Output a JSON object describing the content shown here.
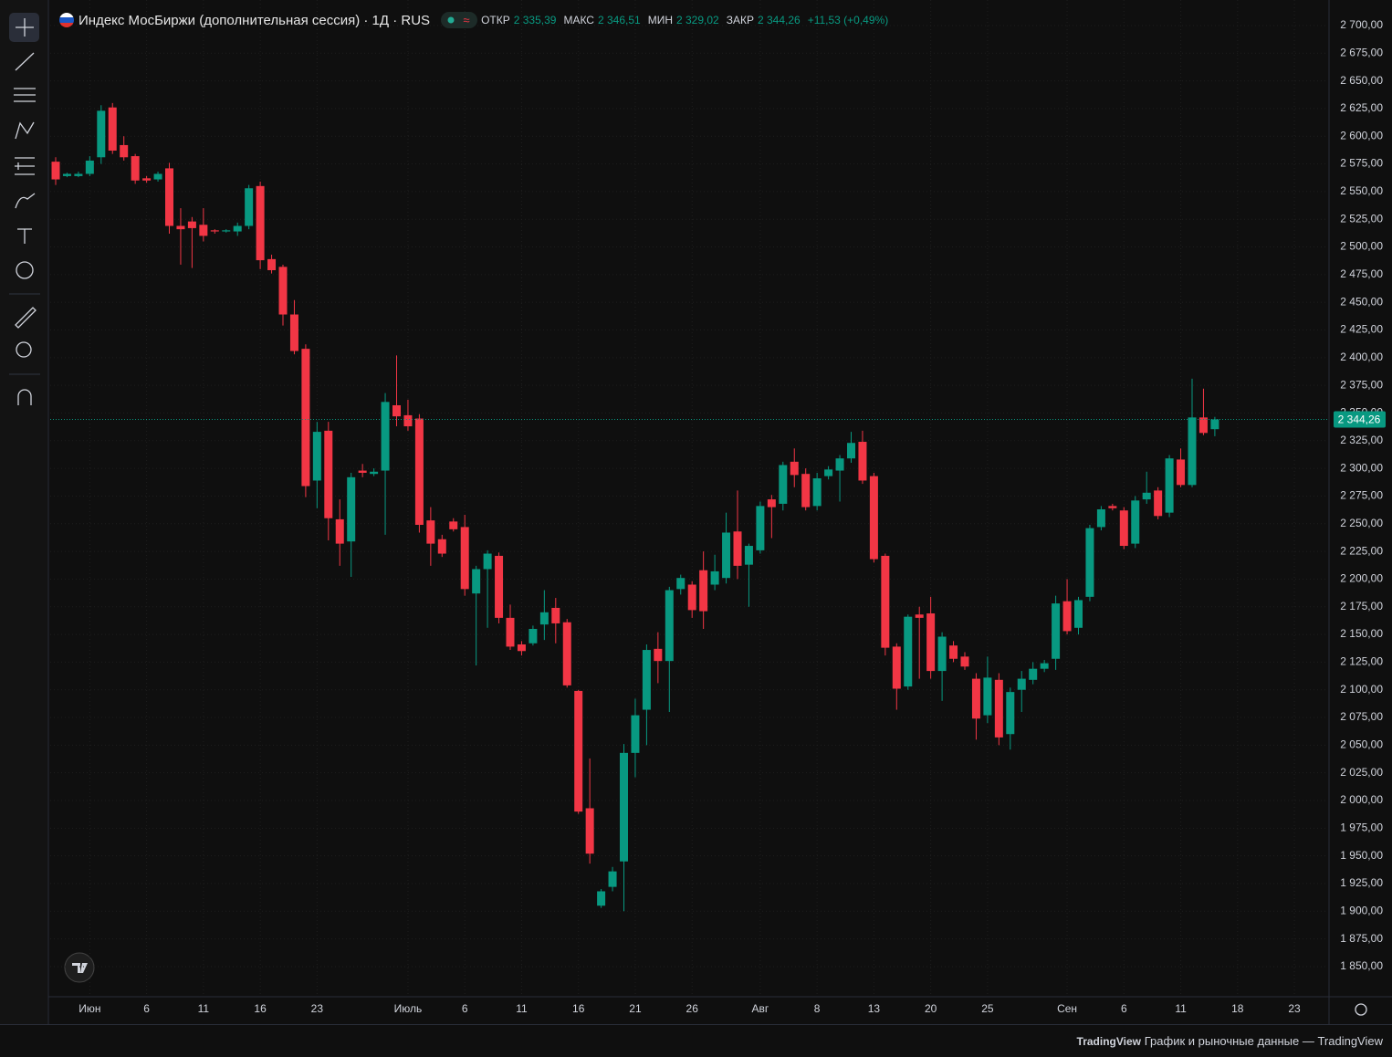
{
  "chart_data": {
    "type": "candlestick",
    "title": "Индекс МосБиржи (дополнительная сессия) · 1Д · RUS",
    "ohlc_legend": {
      "open_label": "ОТКР",
      "open": "2 335,39",
      "high_label": "МАКС",
      "high": "2 346,51",
      "low_label": "МИН",
      "low": "2 329,02",
      "close_label": "ЗАКР",
      "close": "2 344,26",
      "change": "+11,53 (+0,49%)"
    },
    "categories": [
      null,
      null,
      null,
      "Июн",
      null,
      null,
      null,
      null,
      "6",
      null,
      null,
      null,
      null,
      "11",
      null,
      null,
      null,
      null,
      "16",
      null,
      null,
      null,
      null,
      "23",
      null,
      null,
      null,
      null,
      null,
      null,
      null,
      "Июль",
      null,
      null,
      null,
      null,
      "6",
      null,
      null,
      null,
      null,
      "11",
      null,
      null,
      null,
      null,
      "16",
      null,
      null,
      null,
      null,
      "21",
      null,
      null,
      null,
      null,
      "26",
      null,
      null,
      null,
      null,
      null,
      "Авг",
      null,
      null,
      null,
      null,
      "8",
      null,
      null,
      null,
      null,
      "13",
      null,
      null,
      null,
      null,
      "20",
      null,
      null,
      null,
      null,
      "25",
      null,
      null,
      null,
      null,
      null,
      null,
      "Сен",
      null,
      null,
      null,
      null,
      "6",
      null,
      null,
      null,
      null,
      "11",
      null,
      null,
      null,
      null,
      "18",
      null,
      null,
      null,
      null,
      "23"
    ],
    "open": [
      2577,
      2564,
      2564,
      2566,
      2581,
      2626,
      2592,
      2582,
      2562,
      2561,
      2571,
      2519,
      2523,
      2520,
      2515,
      2514,
      2514,
      2519,
      2555,
      2489,
      2482,
      2439,
      2408,
      2289,
      2334,
      2254,
      2234,
      2298,
      2295,
      2298,
      2357,
      2348,
      2345,
      2253,
      2236,
      2252,
      2247,
      2187,
      2209,
      2221,
      2165,
      2141,
      2142,
      2159,
      2174,
      2161,
      2099,
      1993,
      1905,
      1922,
      1945,
      2043,
      2082,
      2137,
      2126,
      2191,
      2195,
      2208,
      2195,
      2201,
      2243,
      2213,
      2226,
      2272,
      2268,
      2306,
      2295,
      2266,
      2293,
      2298,
      2309,
      2324,
      2293,
      2221,
      2139,
      2103,
      2168,
      2169,
      2117,
      2140,
      2130,
      2110,
      2077,
      2109,
      2060,
      2100,
      2109,
      2119,
      2128,
      2180,
      2156,
      2184,
      2247,
      2266,
      2262,
      2232,
      2272,
      2280,
      2260,
      2308,
      2285,
      2346,
      2335.39,
      null,
      null,
      null,
      null,
      null,
      null,
      null
    ],
    "high": [
      2581,
      2567,
      2568,
      2582,
      2628,
      2630,
      2600,
      2584,
      2564,
      2568,
      2576,
      2535,
      2527,
      2535,
      2516,
      2516,
      2522,
      2556,
      2559,
      2493,
      2484,
      2452,
      2412,
      2342,
      2342,
      2272,
      2296,
      2304,
      2300,
      2368,
      2402,
      2362,
      2349,
      2265,
      2240,
      2255,
      2258,
      2212,
      2226,
      2224,
      2177,
      2144,
      2158,
      2190,
      2183,
      2164,
      2100,
      2038,
      1920,
      1940,
      2051,
      2092,
      2141,
      2152,
      2193,
      2204,
      2198,
      2225,
      2222,
      2260,
      2280,
      2232,
      2270,
      2276,
      2306,
      2318,
      2300,
      2296,
      2302,
      2312,
      2333,
      2334,
      2296,
      2223,
      2142,
      2168,
      2175,
      2184,
      2152,
      2144,
      2134,
      2115,
      2130,
      2115,
      2102,
      2117,
      2125,
      2127,
      2185,
      2200,
      2184,
      2249,
      2266,
      2268,
      2265,
      2275,
      2297,
      2283,
      2312,
      2318,
      2381,
      2372,
      2346.51,
      null,
      null,
      null,
      null,
      null,
      null,
      null
    ],
    "low": [
      2556,
      2563,
      2563,
      2564,
      2575,
      2584,
      2578,
      2557,
      2558,
      2559,
      2512,
      2484,
      2481,
      2505,
      2512,
      2513,
      2510,
      2516,
      2480,
      2476,
      2429,
      2403,
      2274,
      2264,
      2235,
      2212,
      2202,
      2292,
      2293,
      2240,
      2338,
      2334,
      2242,
      2212,
      2220,
      2243,
      2185,
      2122,
      2156,
      2160,
      2136,
      2131,
      2140,
      2145,
      2142,
      2102,
      1988,
      1943,
      1903,
      1918,
      1900,
      2021,
      2050,
      2106,
      2080,
      2186,
      2165,
      2155,
      2190,
      2196,
      2200,
      2175,
      2223,
      2237,
      2262,
      2283,
      2262,
      2262,
      2290,
      2270,
      2305,
      2286,
      2215,
      2131,
      2082,
      2100,
      2110,
      2110,
      2090,
      2125,
      2118,
      2055,
      2070,
      2050,
      2046,
      2080,
      2105,
      2116,
      2118,
      2150,
      2150,
      2180,
      2244,
      2262,
      2227,
      2228,
      2268,
      2254,
      2256,
      2283,
      2283,
      2330,
      2329.02,
      null,
      null,
      null,
      null,
      null,
      null,
      null
    ],
    "close": [
      2561,
      2566,
      2566,
      2578,
      2623,
      2587,
      2581,
      2560,
      2560,
      2566,
      2519,
      2516,
      2517,
      2510,
      2514,
      2515,
      2519,
      2553,
      2488,
      2479,
      2439,
      2406,
      2284,
      2333,
      2255,
      2232,
      2292,
      2296,
      2297,
      2360,
      2347,
      2338,
      2249,
      2232,
      2223,
      2245,
      2191,
      2209,
      2223,
      2165,
      2139,
      2135,
      2155,
      2170,
      2160,
      2104,
      1990,
      1952,
      1918,
      1936,
      2043,
      2077,
      2136,
      2126,
      2190,
      2201,
      2172,
      2171,
      2207,
      2242,
      2212,
      2230,
      2266,
      2265,
      2303,
      2294,
      2265,
      2291,
      2299,
      2309,
      2323,
      2289,
      2218,
      2138,
      2101,
      2166,
      2165,
      2117,
      2148,
      2128,
      2121,
      2074,
      2111,
      2057,
      2098,
      2110,
      2119,
      2124,
      2178,
      2153,
      2181,
      2246,
      2263,
      2264,
      2230,
      2271,
      2278,
      2257,
      2309,
      2285,
      2346,
      2332,
      2344.26,
      null,
      null,
      null,
      null,
      null,
      null,
      null
    ],
    "up_color": "#089981",
    "down_color": "#f23645",
    "ylim": [
      1824.4,
      2714.8
    ],
    "yticks": [
      {
        "value": 1850,
        "label": "1 850,00"
      },
      {
        "value": 1875,
        "label": "1 875,00"
      },
      {
        "value": 1900,
        "label": "1 900,00"
      },
      {
        "value": 1925,
        "label": "1 925,00"
      },
      {
        "value": 1950,
        "label": "1 950,00"
      },
      {
        "value": 1975,
        "label": "1 975,00"
      },
      {
        "value": 2000,
        "label": "2 000,00"
      },
      {
        "value": 2025,
        "label": "2 025,00"
      },
      {
        "value": 2050,
        "label": "2 050,00"
      },
      {
        "value": 2075,
        "label": "2 075,00"
      },
      {
        "value": 2100,
        "label": "2 100,00"
      },
      {
        "value": 2125,
        "label": "2 125,00"
      },
      {
        "value": 2150,
        "label": "2 150,00"
      },
      {
        "value": 2175,
        "label": "2 175,00"
      },
      {
        "value": 2200,
        "label": "2 200,00"
      },
      {
        "value": 2225,
        "label": "2 225,00"
      },
      {
        "value": 2250,
        "label": "2 250,00"
      },
      {
        "value": 2275,
        "label": "2 275,00"
      },
      {
        "value": 2300,
        "label": "2 300,00"
      },
      {
        "value": 2325,
        "label": "2 325,00"
      },
      {
        "value": 2350,
        "label": "2 350,00"
      },
      {
        "value": 2375,
        "label": "2 375,00"
      },
      {
        "value": 2400,
        "label": "2 400,00"
      },
      {
        "value": 2425,
        "label": "2 425,00"
      },
      {
        "value": 2450,
        "label": "2 450,00"
      },
      {
        "value": 2475,
        "label": "2 475,00"
      },
      {
        "value": 2500,
        "label": "2 500,00"
      },
      {
        "value": 2525,
        "label": "2 525,00"
      },
      {
        "value": 2550,
        "label": "2 550,00"
      },
      {
        "value": 2575,
        "label": "2 575,00"
      },
      {
        "value": 2600,
        "label": "2 600,00"
      },
      {
        "value": 2625,
        "label": "2 625,00"
      },
      {
        "value": 2650,
        "label": "2 650,00"
      },
      {
        "value": 2675,
        "label": "2 675,00"
      },
      {
        "value": 2700,
        "label": "2 700,00"
      }
    ],
    "grid": true,
    "footer": {
      "logo": "TradingView",
      "text": "График и рыночные данные — TradingView"
    }
  }
}
